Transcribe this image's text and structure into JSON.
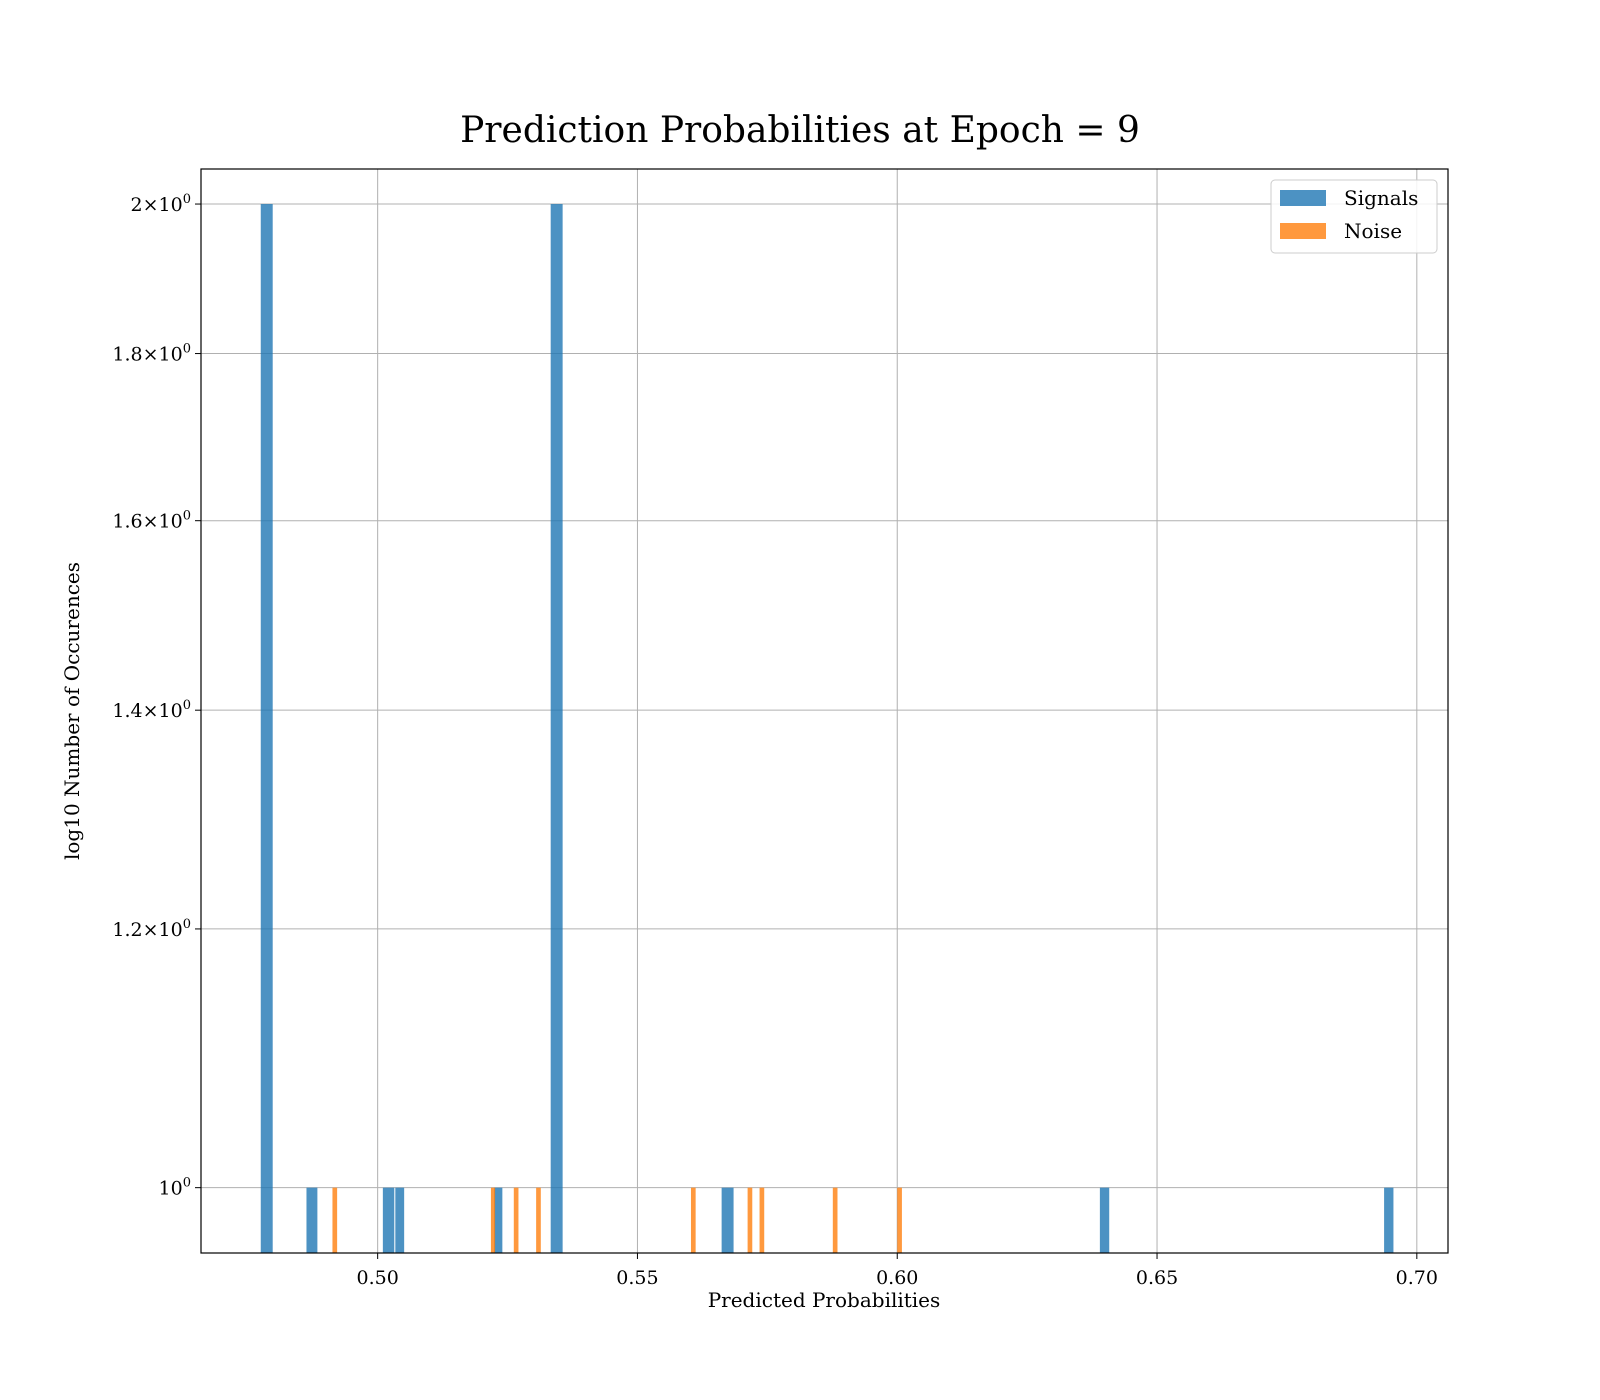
{
  "chart_data": {
    "type": "bar",
    "title": "Prediction Probabilities at Epoch = 9",
    "xlabel": "Predicted Probabilities",
    "ylabel": "log10 Number of Occurences",
    "xlim": [
      0.466,
      0.706
    ],
    "ylim": [
      0.955,
      2.05
    ],
    "yscale": "log",
    "x_ticks": [
      0.5,
      0.55,
      0.6,
      0.65,
      0.7
    ],
    "x_tick_labels": [
      "0.50",
      "0.55",
      "0.60",
      "0.65",
      "0.70"
    ],
    "y_ticks": [
      {
        "value": 2.0,
        "mantissa": "2",
        "exp": "0"
      },
      {
        "value": 1.8,
        "mantissa": "1.8",
        "exp": "0"
      },
      {
        "value": 1.6,
        "mantissa": "1.6",
        "exp": "0"
      },
      {
        "value": 1.4,
        "mantissa": "1.4",
        "exp": "0"
      },
      {
        "value": 1.2,
        "mantissa": "1.2",
        "exp": "0"
      },
      {
        "value": 1.0,
        "mantissa": "",
        "exp": "0"
      }
    ],
    "grid": true,
    "legend_position": "top-right",
    "series": [
      {
        "name": "Signals",
        "color": "#1f77b4",
        "bins": [
          {
            "x0": 0.4775,
            "x1": 0.4798,
            "count": 2
          },
          {
            "x0": 0.4863,
            "x1": 0.4884,
            "count": 1
          },
          {
            "x0": 0.501,
            "x1": 0.5032,
            "count": 1
          },
          {
            "x0": 0.5034,
            "x1": 0.5051,
            "count": 1
          },
          {
            "x0": 0.5224,
            "x1": 0.524,
            "count": 1
          },
          {
            "x0": 0.5333,
            "x1": 0.5356,
            "count": 2
          },
          {
            "x0": 0.5662,
            "x1": 0.5685,
            "count": 1
          },
          {
            "x0": 0.639,
            "x1": 0.6408,
            "count": 1
          },
          {
            "x0": 0.6937,
            "x1": 0.6955,
            "count": 1
          }
        ]
      },
      {
        "name": "Noise",
        "color": "#ff7f0e",
        "bins": [
          {
            "x0": 0.4913,
            "x1": 0.4922,
            "count": 1
          },
          {
            "x0": 0.5218,
            "x1": 0.5226,
            "count": 1
          },
          {
            "x0": 0.5262,
            "x1": 0.5271,
            "count": 1
          },
          {
            "x0": 0.5305,
            "x1": 0.5314,
            "count": 1
          },
          {
            "x0": 0.5603,
            "x1": 0.5612,
            "count": 1
          },
          {
            "x0": 0.5712,
            "x1": 0.5721,
            "count": 1
          },
          {
            "x0": 0.5735,
            "x1": 0.5744,
            "count": 1
          },
          {
            "x0": 0.5876,
            "x1": 0.5885,
            "count": 1
          },
          {
            "x0": 0.6,
            "x1": 0.6009,
            "count": 1
          }
        ]
      }
    ]
  }
}
